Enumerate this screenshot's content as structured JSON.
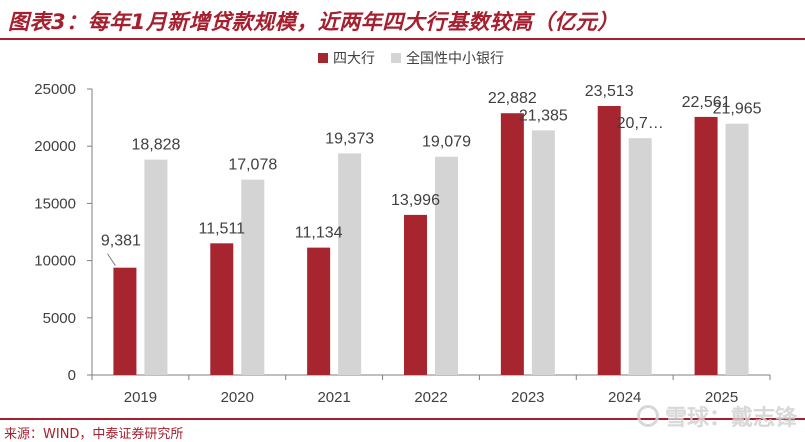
{
  "title": "图表3：每年1月新增贷款规模，近两年四大行基数较高（亿元）",
  "source": "来源：WIND，中泰证券研究所",
  "watermark": "雪球：戴志锋",
  "colors": {
    "accent": "#a61f2e",
    "series1": "#a7252f",
    "series2": "#d4d4d4"
  },
  "chart_data": {
    "type": "bar",
    "categories": [
      "2019",
      "2020",
      "2021",
      "2022",
      "2023",
      "2024",
      "2025"
    ],
    "series": [
      {
        "name": "四大行",
        "values": [
          9381,
          11511,
          11134,
          13996,
          22882,
          23513,
          22561
        ],
        "labels": [
          "9,381",
          "11,511",
          "11,134",
          "13,996",
          "22,882",
          "23,513",
          "22,561"
        ]
      },
      {
        "name": "全国性中小银行",
        "values": [
          18828,
          17078,
          19373,
          19079,
          21385,
          20700,
          21965
        ],
        "labels": [
          "18,828",
          "17,078",
          "19,373",
          "19,079",
          "21,385",
          "20,7…",
          "21,965"
        ]
      }
    ],
    "yticks": [
      "0",
      "5000",
      "10000",
      "15000",
      "20000",
      "25000"
    ],
    "ylim": [
      0,
      25000
    ],
    "legend": "top-center",
    "grid": false
  }
}
